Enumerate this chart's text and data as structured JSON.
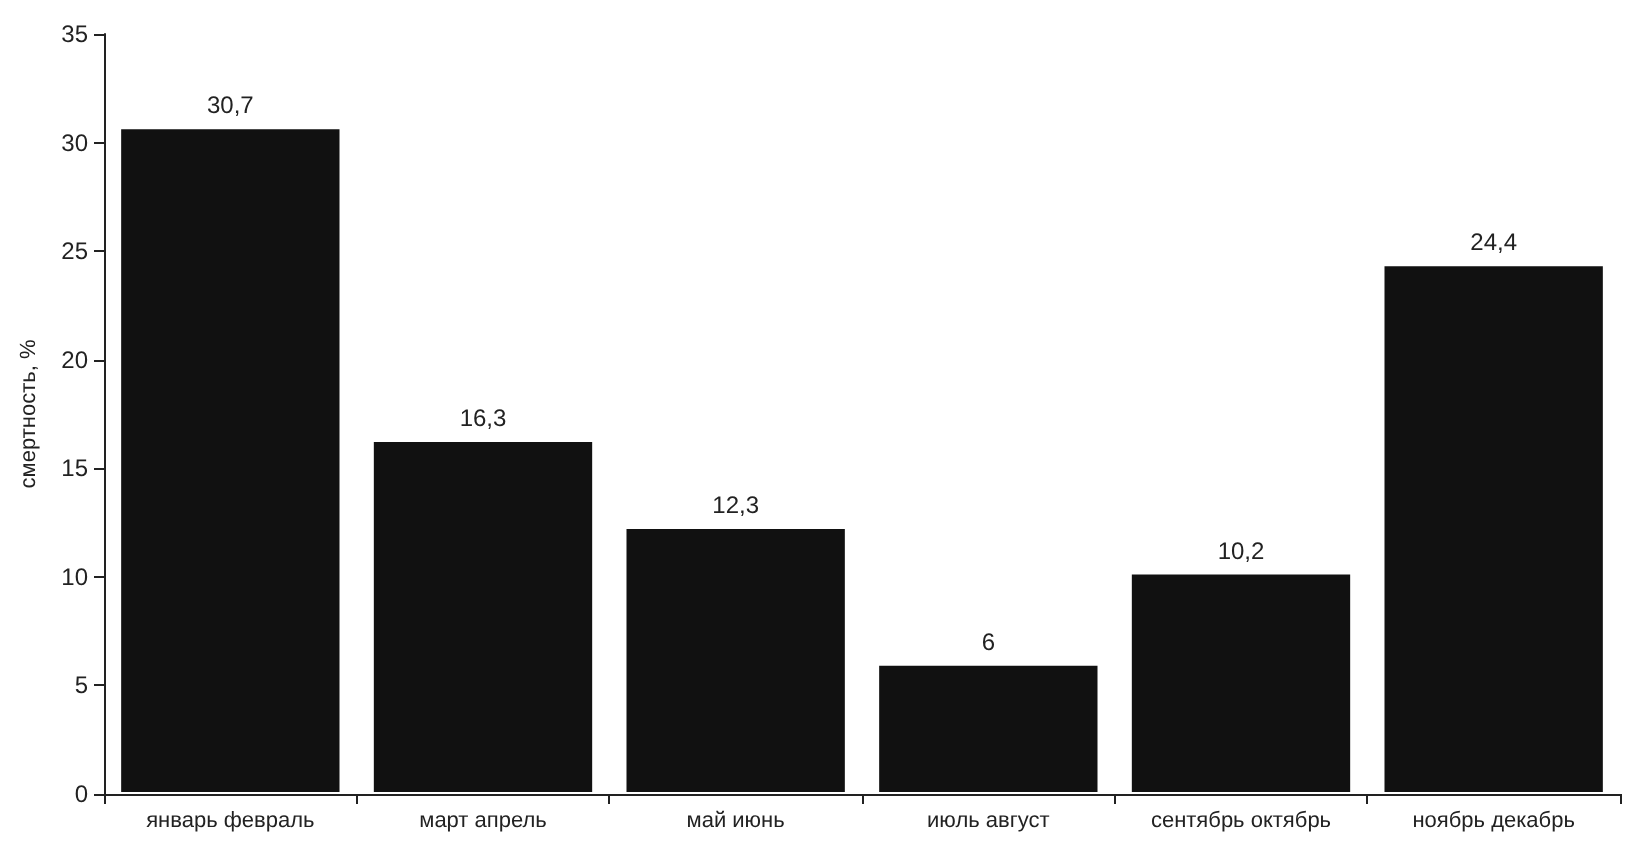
{
  "chart_data": {
    "type": "bar",
    "ylabel": "смертность, %",
    "categories": [
      "январь февраль",
      "март апрель",
      "май июнь",
      "июль август",
      "сентябрь октябрь",
      "ноябрь декабрь"
    ],
    "values": [
      30.7,
      16.3,
      12.3,
      6,
      10.2,
      24.4
    ],
    "value_labels": [
      "30,7",
      "16,3",
      "12,3",
      "6",
      "10,2",
      "24,4"
    ],
    "color": "#111111",
    "ylim": [
      0,
      35
    ],
    "yticks": [
      0,
      5,
      10,
      15,
      20,
      25,
      30,
      35
    ],
    "grid": false
  }
}
